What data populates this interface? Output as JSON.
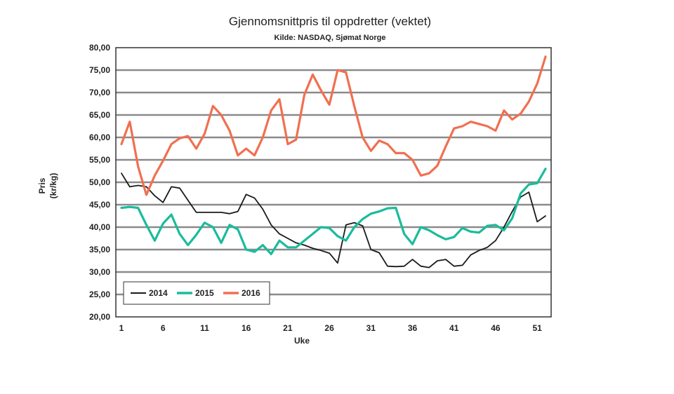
{
  "chart_data": {
    "type": "line",
    "title": "Gjennomsnittpris til oppdretter (vektet)",
    "subtitle": "Kilde: NASDAQ, Sjømat Norge",
    "xlabel": "Uke",
    "ylabel_line1": "Pris",
    "ylabel_line2": "(kr/kg)",
    "ylim": [
      20,
      80
    ],
    "ystep": 5,
    "xlim": [
      1,
      52
    ],
    "x_ticks": [
      1,
      6,
      11,
      16,
      21,
      26,
      31,
      36,
      41,
      46,
      51
    ],
    "grid": true,
    "legend_position": "bottom-left",
    "series": [
      {
        "name": "2014",
        "color": "#1a1a1a",
        "values": [
          52.0,
          49.0,
          49.3,
          49.0,
          47.0,
          45.5,
          49.0,
          48.7,
          46.0,
          43.3,
          43.3,
          43.3,
          43.3,
          43.0,
          43.5,
          47.3,
          46.5,
          44.0,
          40.5,
          38.5,
          37.5,
          36.5,
          36.0,
          35.3,
          34.8,
          34.2,
          32.0,
          40.5,
          41.0,
          40.3,
          35.0,
          34.3,
          31.3,
          31.2,
          31.3,
          32.8,
          31.3,
          31.0,
          32.5,
          32.8,
          31.3,
          31.5,
          33.8,
          34.8,
          35.5,
          37.0,
          40.0,
          43.5,
          46.7,
          47.8,
          41.2,
          42.5
        ]
      },
      {
        "name": "2015",
        "color": "#1abc9c",
        "values": [
          44.3,
          44.5,
          44.3,
          40.5,
          37.0,
          40.8,
          42.8,
          38.5,
          36.0,
          38.3,
          41.0,
          40.0,
          36.5,
          40.5,
          39.5,
          35.0,
          34.5,
          36.0,
          34.0,
          37.0,
          35.5,
          35.5,
          37.0,
          38.5,
          40.0,
          39.8,
          38.0,
          37.0,
          40.0,
          41.8,
          43.0,
          43.5,
          44.2,
          44.3,
          38.5,
          36.2,
          40.0,
          39.3,
          38.2,
          37.3,
          37.8,
          39.8,
          39.0,
          38.8,
          40.3,
          40.5,
          39.3,
          42.0,
          47.5,
          49.5,
          49.8,
          53.0
        ]
      },
      {
        "name": "2016",
        "color": "#f07050",
        "values": [
          58.5,
          63.5,
          53.5,
          47.2,
          51.5,
          54.8,
          58.5,
          59.8,
          60.3,
          57.5,
          60.8,
          67.0,
          65.0,
          61.5,
          56.0,
          57.5,
          56.0,
          60.0,
          66.0,
          68.5,
          58.5,
          59.5,
          69.5,
          74.0,
          70.5,
          67.3,
          75.0,
          74.5,
          67.0,
          60.0,
          57.0,
          59.3,
          58.5,
          56.5,
          56.5,
          55.0,
          51.5,
          52.0,
          53.7,
          58.0,
          62.0,
          62.5,
          63.5,
          63.0,
          62.5,
          61.5,
          66.0,
          64.0,
          65.3,
          68.0,
          72.0,
          78.0
        ]
      }
    ]
  }
}
